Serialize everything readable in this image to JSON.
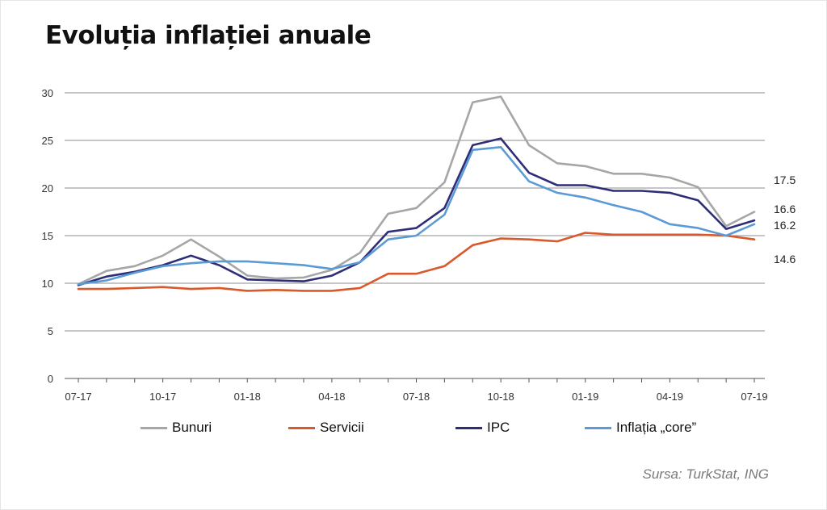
{
  "title": "Evoluția inflației anuale",
  "source": "Sursa: TurkStat, ING",
  "chart_data": {
    "type": "line",
    "title": "Evoluția inflației anuale",
    "ylim": [
      0,
      30
    ],
    "yticks": [
      0,
      5,
      10,
      15,
      20,
      25,
      30
    ],
    "grid": true,
    "legend_position": "bottom",
    "x": [
      "07-17",
      "08-17",
      "09-17",
      "10-17",
      "11-17",
      "12-17",
      "01-18",
      "02-18",
      "03-18",
      "04-18",
      "05-18",
      "06-18",
      "07-18",
      "08-18",
      "09-18",
      "10-18",
      "11-18",
      "12-18",
      "01-19",
      "02-19",
      "03-19",
      "04-19",
      "05-19",
      "06-19",
      "07-19"
    ],
    "xtick_labels": [
      "07-17",
      "10-17",
      "01-18",
      "04-18",
      "07-18",
      "10-18",
      "01-19",
      "04-19",
      "07-19"
    ],
    "series": [
      {
        "name": "Bunuri",
        "color": "#a6a6a6",
        "values": [
          9.9,
          11.3,
          11.8,
          12.9,
          14.6,
          12.8,
          10.8,
          10.5,
          10.6,
          11.4,
          13.2,
          17.3,
          17.9,
          20.6,
          29.0,
          29.6,
          24.5,
          22.6,
          22.3,
          21.5,
          21.5,
          21.1,
          20.1,
          16.0,
          17.5
        ],
        "end_label": "17.5"
      },
      {
        "name": "Servicii",
        "color": "#d9592b",
        "values": [
          9.4,
          9.4,
          9.5,
          9.6,
          9.4,
          9.5,
          9.2,
          9.3,
          9.2,
          9.2,
          9.5,
          11.0,
          11.0,
          11.8,
          14.0,
          14.7,
          14.6,
          14.4,
          15.3,
          15.1,
          15.1,
          15.1,
          15.1,
          15.0,
          14.6
        ],
        "end_label": "14.6"
      },
      {
        "name": "IPC",
        "color": "#2e2d77",
        "values": [
          9.8,
          10.7,
          11.2,
          11.9,
          12.9,
          11.9,
          10.4,
          10.3,
          10.2,
          10.8,
          12.2,
          15.4,
          15.8,
          17.9,
          24.5,
          25.2,
          21.6,
          20.3,
          20.3,
          19.7,
          19.7,
          19.5,
          18.7,
          15.7,
          16.6
        ],
        "end_label": "16.6"
      },
      {
        "name": "Inflația „core”",
        "color": "#5b9bd5",
        "values": [
          9.9,
          10.3,
          11.1,
          11.8,
          12.1,
          12.3,
          12.3,
          12.1,
          11.9,
          11.5,
          12.2,
          14.6,
          15.0,
          17.2,
          24.0,
          24.3,
          20.7,
          19.5,
          19.0,
          18.2,
          17.5,
          16.2,
          15.8,
          15.0,
          16.2
        ],
        "end_label": "16.2"
      }
    ]
  }
}
